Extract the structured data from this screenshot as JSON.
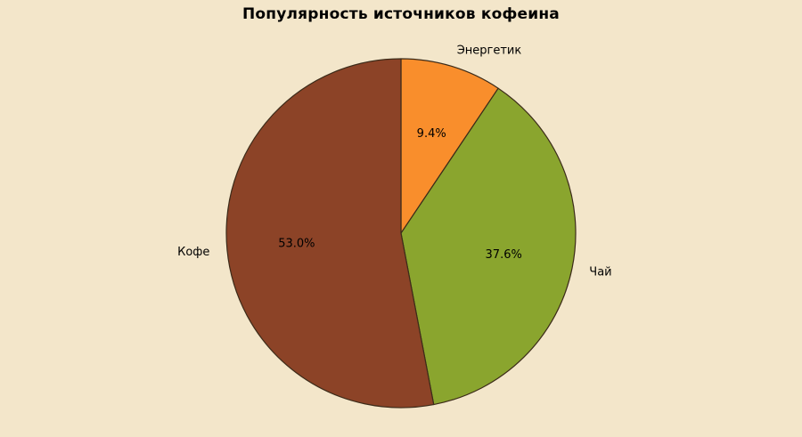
{
  "background_color": "#f3e6ca",
  "text_color": "#000000",
  "chart_data": {
    "type": "pie",
    "title": "Популярность источников кофеина",
    "labels": [
      "Энергетик",
      "Чай",
      "Кофе"
    ],
    "values": [
      9.4,
      37.6,
      53.0
    ],
    "percentage_labels": [
      "9.4%",
      "37.6%",
      "53.0%"
    ],
    "colors": [
      "#f98e2c",
      "#8aa52e",
      "#8c4327"
    ],
    "edge_color": "#3c2b19",
    "start_angle": 90,
    "direction": "clockwise",
    "label_distance": 1.1,
    "pct_distance": 0.6,
    "legend": "none"
  }
}
